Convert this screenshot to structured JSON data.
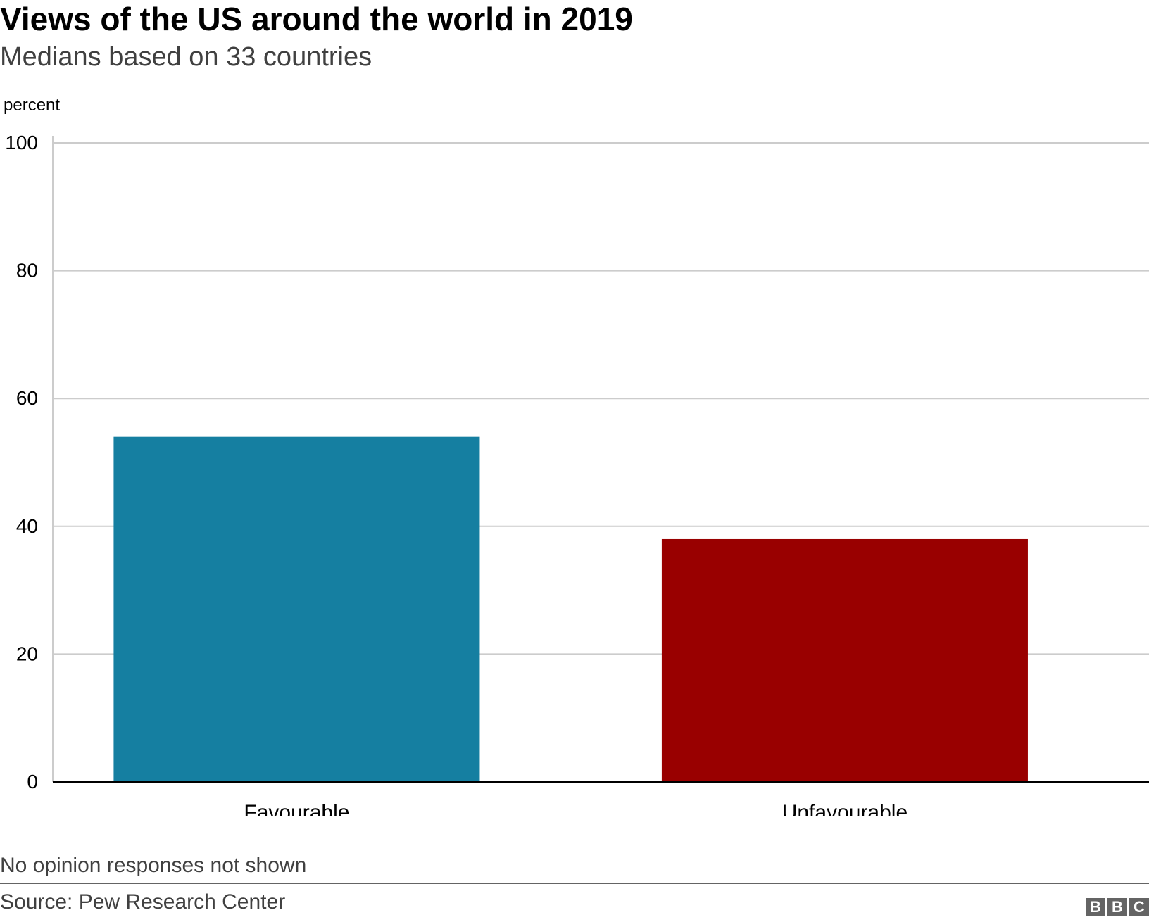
{
  "header": {
    "title": "Views of the US around the world in 2019",
    "subtitle": "Medians based on 33 countries"
  },
  "footer": {
    "note": "No opinion responses not shown",
    "source": "Source: Pew Research Center",
    "logo_letters": [
      "B",
      "B",
      "C"
    ]
  },
  "colors": {
    "favourable": "#157fa1",
    "unfavourable": "#990000",
    "gridline": "#cccccc",
    "baseline": "#000000",
    "logo": "#646464"
  },
  "chart_data": {
    "type": "bar",
    "title": "Views of the US around the world in 2019",
    "subtitle": "Medians based on 33 countries",
    "xlabel": "",
    "ylabel": "percent",
    "categories": [
      "Favourable",
      "Unfavourable"
    ],
    "values": [
      54,
      38
    ],
    "bar_colors": [
      "#157fa1",
      "#990000"
    ],
    "ylim": [
      0,
      100
    ],
    "yticks": [
      0,
      20,
      40,
      60,
      80,
      100
    ],
    "grid": true,
    "legend": "none"
  }
}
